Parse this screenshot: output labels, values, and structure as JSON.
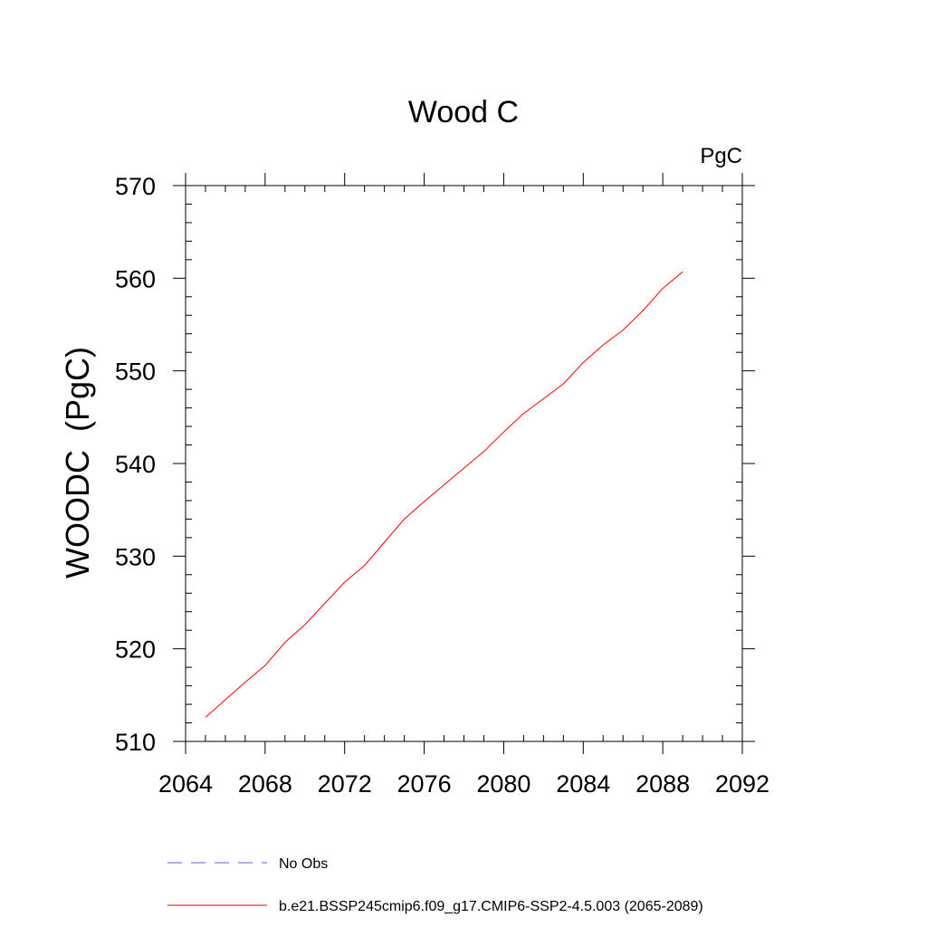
{
  "chart_data": {
    "type": "line",
    "title": "Wood C",
    "units_label": "PgC",
    "ylabel": "WOODC  (PgC)",
    "xlabel": "",
    "xlim": [
      2064,
      2092
    ],
    "ylim": [
      510,
      570
    ],
    "x_ticks": [
      2064,
      2068,
      2072,
      2076,
      2080,
      2084,
      2088,
      2092
    ],
    "x_tick_labels": [
      "2064",
      "2068",
      "2072",
      "2076",
      "2080",
      "2084",
      "2088",
      "2092"
    ],
    "x_minor_step": 1,
    "y_ticks": [
      510,
      520,
      530,
      540,
      550,
      560,
      570
    ],
    "y_tick_labels": [
      "510",
      "520",
      "530",
      "540",
      "550",
      "560",
      "570"
    ],
    "y_minor_step": 2,
    "grid": false,
    "legend_position": "bottom",
    "series": [
      {
        "name": "No Obs",
        "color": "#5b5bd6",
        "dash": "dashed",
        "x": [],
        "y": []
      },
      {
        "name": "b.e21.BSSP245cmip6.f09_g17.CMIP6-SSP2-4.5.003 (2065-2089)",
        "color": "#ff0000",
        "dash": "solid",
        "x": [
          2065,
          2066,
          2067,
          2068,
          2069,
          2070,
          2071,
          2072,
          2073,
          2074,
          2075,
          2076,
          2077,
          2078,
          2079,
          2080,
          2081,
          2082,
          2083,
          2084,
          2085,
          2086,
          2087,
          2088,
          2089
        ],
        "y": [
          512.6,
          514.5,
          516.4,
          518.2,
          520.7,
          522.6,
          524.9,
          527.2,
          529.0,
          531.5,
          534.0,
          535.9,
          537.7,
          539.5,
          541.3,
          543.4,
          545.4,
          547.0,
          548.6,
          550.9,
          552.8,
          554.4,
          556.5,
          558.9,
          560.7
        ]
      }
    ]
  }
}
